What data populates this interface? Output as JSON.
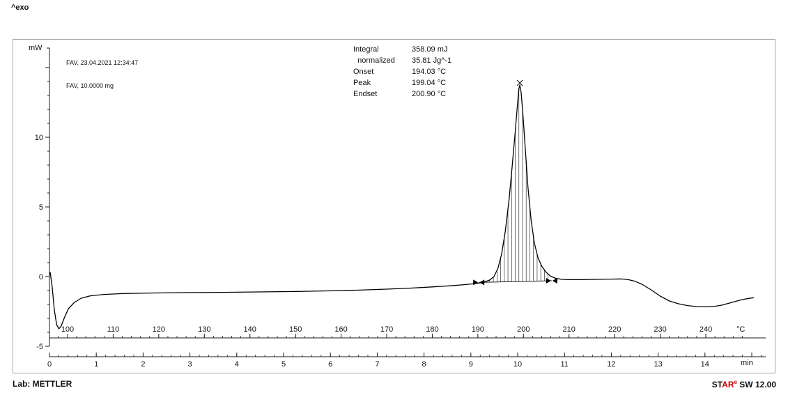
{
  "page": {
    "exo_label": "^exo"
  },
  "annotations": {
    "sample_line1": "FAV, 23.04.2021 12:34:47",
    "sample_line2": "FAV, 10.0000 mg",
    "results": {
      "rows": [
        {
          "label": "Integral",
          "value": "358.09 mJ"
        },
        {
          "label": "  normalized",
          "value": "35.81 Jg^-1"
        },
        {
          "label": "Onset",
          "value": "194.03 °C"
        },
        {
          "label": "Peak",
          "value": "199.04 °C"
        },
        {
          "label": "Endset",
          "value": "200.90 °C"
        }
      ]
    }
  },
  "footer": {
    "lab": "Lab: METTLER",
    "software": {
      "part1": "ST",
      "part2": "AR",
      "sup": "e",
      "part3": " SW 12.00"
    },
    "accent_red": "#cc0000"
  },
  "chart_data": {
    "type": "line",
    "title": "DSC thermogram",
    "ylabel": "mW",
    "xlabel_top": "°C",
    "xlabel_bottom": "min",
    "exo_direction": "up",
    "ylim": [
      -5,
      16
    ],
    "y_ticks": [
      -5,
      0,
      5,
      10
    ],
    "temp_ticks": [
      100,
      110,
      120,
      130,
      140,
      150,
      160,
      170,
      180,
      190,
      200,
      210,
      220,
      230,
      240
    ],
    "time_ticks": [
      0,
      1,
      2,
      3,
      4,
      5,
      6,
      7,
      8,
      9,
      10,
      11,
      12,
      13,
      14
    ],
    "heating_rate_C_per_min": 10,
    "curve": {
      "name": "heat-flow-vs-temperature",
      "points_T_mW": [
        [
          96.0,
          0.1
        ],
        [
          96.2,
          0.3
        ],
        [
          96.6,
          -0.7
        ],
        [
          97.1,
          -2.4
        ],
        [
          97.6,
          -3.45
        ],
        [
          98.1,
          -3.75
        ],
        [
          98.6,
          -3.55
        ],
        [
          99.3,
          -2.95
        ],
        [
          100.2,
          -2.3
        ],
        [
          101.5,
          -1.85
        ],
        [
          103.0,
          -1.55
        ],
        [
          105.0,
          -1.38
        ],
        [
          108.0,
          -1.28
        ],
        [
          112.0,
          -1.22
        ],
        [
          118.0,
          -1.18
        ],
        [
          126.0,
          -1.15
        ],
        [
          134.0,
          -1.13
        ],
        [
          142.0,
          -1.1
        ],
        [
          150.0,
          -1.07
        ],
        [
          158.0,
          -1.02
        ],
        [
          164.0,
          -0.97
        ],
        [
          170.0,
          -0.9
        ],
        [
          175.0,
          -0.83
        ],
        [
          180.0,
          -0.74
        ],
        [
          184.0,
          -0.66
        ],
        [
          187.0,
          -0.58
        ],
        [
          189.5,
          -0.5
        ],
        [
          191.0,
          -0.42
        ],
        [
          192.5,
          -0.26
        ],
        [
          193.5,
          -0.02
        ],
        [
          194.4,
          0.6
        ],
        [
          195.2,
          1.6
        ],
        [
          196.0,
          3.2
        ],
        [
          196.8,
          5.4
        ],
        [
          197.5,
          7.8
        ],
        [
          198.2,
          10.4
        ],
        [
          198.7,
          12.4
        ],
        [
          199.0,
          13.5
        ],
        [
          199.2,
          13.75
        ],
        [
          199.5,
          13.2
        ],
        [
          199.9,
          11.6
        ],
        [
          200.4,
          9.2
        ],
        [
          201.0,
          6.4
        ],
        [
          201.7,
          4.0
        ],
        [
          202.4,
          2.4
        ],
        [
          203.2,
          1.35
        ],
        [
          204.0,
          0.75
        ],
        [
          205.0,
          0.3
        ],
        [
          206.0,
          0.02
        ],
        [
          207.0,
          -0.12
        ],
        [
          208.5,
          -0.2
        ],
        [
          210.0,
          -0.22
        ],
        [
          213.0,
          -0.22
        ],
        [
          216.0,
          -0.2
        ],
        [
          219.0,
          -0.18
        ],
        [
          221.5,
          -0.17
        ],
        [
          223.0,
          -0.22
        ],
        [
          224.5,
          -0.34
        ],
        [
          226.0,
          -0.55
        ],
        [
          228.0,
          -0.95
        ],
        [
          230.0,
          -1.4
        ],
        [
          232.0,
          -1.75
        ],
        [
          234.0,
          -1.95
        ],
        [
          236.0,
          -2.08
        ],
        [
          238.0,
          -2.15
        ],
        [
          240.0,
          -2.17
        ],
        [
          242.0,
          -2.13
        ],
        [
          243.5,
          -2.05
        ],
        [
          245.0,
          -1.92
        ],
        [
          246.5,
          -1.78
        ],
        [
          248.0,
          -1.65
        ],
        [
          249.5,
          -1.56
        ],
        [
          250.5,
          -1.52
        ]
      ]
    },
    "integration": {
      "limits_T": [
        190.2,
        206.2
      ],
      "baseline_mW": [
        -0.42,
        -0.3
      ],
      "peak_marker_T": 199.2,
      "peak_marker_mW": 13.9,
      "results_ref": "annotations.results"
    }
  }
}
